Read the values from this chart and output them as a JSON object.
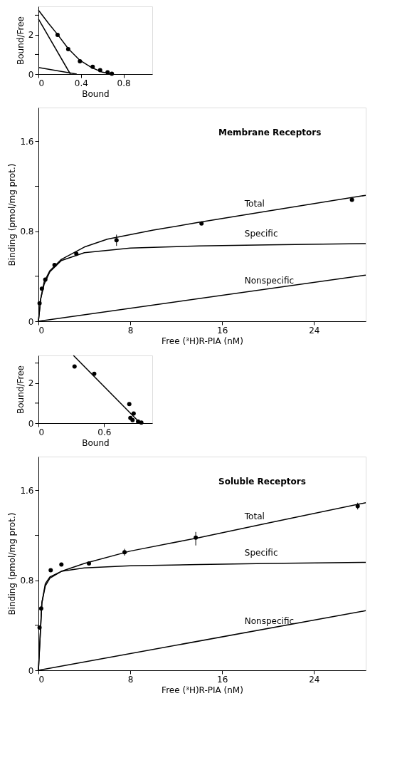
{
  "chart_data": [
    {
      "type": "line",
      "xlabel": "Bound",
      "ylabel": "Bound/Free",
      "xlim": [
        0,
        1.07
      ],
      "ylim": [
        0,
        3.45
      ],
      "xticks": [
        0,
        0.4,
        0.8
      ],
      "yticks": [
        0,
        {
          "value": 1,
          "label": null
        },
        2,
        {
          "value": 3,
          "label": null
        }
      ],
      "series": [
        {
          "type": "scatter",
          "marker": "circle",
          "color": "#000000",
          "x": [
            0.18,
            0.28,
            0.39,
            0.51,
            0.58,
            0.65,
            0.69
          ],
          "values": [
            2.0,
            1.27,
            0.65,
            0.37,
            0.2,
            0.09,
            0.02
          ]
        },
        {
          "type": "line",
          "color": "#000000",
          "x": [
            0,
            0.1,
            0.18,
            0.28,
            0.39,
            0.5,
            0.6,
            0.7
          ],
          "values": [
            3.26,
            2.55,
            2.02,
            1.3,
            0.7,
            0.33,
            0.1,
            0
          ]
        },
        {
          "type": "line",
          "color": "#000000",
          "x": [
            0,
            0.3
          ],
          "values": [
            2.81,
            0
          ]
        },
        {
          "type": "line",
          "color": "#000000",
          "x": [
            0,
            0.36
          ],
          "values": [
            0.34,
            0
          ]
        }
      ]
    },
    {
      "type": "line",
      "title": "Membrane Receptors",
      "xlabel": "Free (³H)R-PIA (nM)",
      "ylabel": "Binding  (pmol/mg prot.)",
      "xlim": [
        0,
        28.5
      ],
      "ylim": [
        0,
        1.9
      ],
      "xticks": [
        0,
        8,
        16,
        24
      ],
      "yticks": [
        0,
        {
          "value": 0.4,
          "label": null
        },
        0.8,
        {
          "value": 1.2,
          "label": null
        },
        1.6
      ],
      "series": [
        {
          "type": "scatter",
          "marker": "circle",
          "color": "#000000",
          "x": [
            0.1,
            0.3,
            0.6,
            1.4,
            3.3,
            6.8,
            14.2,
            27.3
          ],
          "values": [
            0.16,
            0.29,
            0.37,
            0.5,
            0.6,
            0.72,
            0.87,
            1.08
          ],
          "errors": [
            null,
            null,
            null,
            null,
            null,
            [
              0.67,
              0.77
            ],
            null,
            null
          ]
        },
        {
          "type": "line",
          "name": "Total",
          "color": "#000000",
          "x": [
            0,
            0.2,
            0.5,
            1,
            2,
            4,
            6,
            10,
            14,
            20,
            28.5
          ],
          "values": [
            0,
            0.2,
            0.35,
            0.45,
            0.55,
            0.66,
            0.73,
            0.81,
            0.88,
            0.98,
            1.12
          ]
        },
        {
          "type": "line",
          "name": "Specific",
          "color": "#000000",
          "x": [
            0,
            0.2,
            0.5,
            1,
            2,
            4,
            8,
            14,
            20,
            28.5
          ],
          "values": [
            0,
            0.2,
            0.33,
            0.44,
            0.54,
            0.61,
            0.65,
            0.67,
            0.68,
            0.69
          ]
        },
        {
          "type": "line",
          "name": "Nonspecific",
          "color": "#000000",
          "x": [
            0,
            28.5
          ],
          "values": [
            0,
            0.41
          ]
        }
      ]
    },
    {
      "type": "line",
      "xlabel": "Bound",
      "ylabel": "Bound/Free",
      "xlim": [
        0,
        1.04
      ],
      "ylim": [
        0,
        3.38
      ],
      "xticks": [
        0,
        0.6
      ],
      "yticks": [
        0,
        {
          "value": 1,
          "label": null
        },
        2,
        {
          "value": 3,
          "label": null
        }
      ],
      "series": [
        {
          "type": "scatter",
          "marker": "circle",
          "color": "#000000",
          "x": [
            0.33,
            0.51,
            0.83,
            0.87,
            0.84,
            0.86,
            0.91,
            0.94
          ],
          "values": [
            2.83,
            2.46,
            0.95,
            0.48,
            0.26,
            0.15,
            0.08,
            0.03
          ]
        },
        {
          "type": "line",
          "color": "#000000",
          "x": [
            0.32,
            0.93
          ],
          "values": [
            3.38,
            0
          ]
        }
      ]
    },
    {
      "type": "line",
      "title": "Soluble Receptors",
      "xlabel": "Free (³H)R-PIA (nM)",
      "ylabel": "Binding  (pmol/mg prot.)",
      "xlim": [
        0,
        28.5
      ],
      "ylim": [
        0,
        1.9
      ],
      "xticks": [
        0,
        8,
        16,
        24
      ],
      "yticks": [
        0,
        {
          "value": 0.4,
          "label": null
        },
        0.8,
        {
          "value": 1.2,
          "label": null
        },
        1.6
      ],
      "series": [
        {
          "type": "scatter",
          "marker": "circle",
          "color": "#000000",
          "x": [
            0.1,
            0.24,
            1.07,
            2.0,
            4.4,
            7.5,
            13.7,
            27.8
          ],
          "values": [
            0.38,
            0.55,
            0.89,
            0.94,
            0.95,
            1.05,
            1.18,
            1.46
          ],
          "errors": [
            null,
            null,
            null,
            null,
            null,
            [
              1.02,
              1.08
            ],
            [
              1.11,
              1.23
            ],
            [
              1.43,
              1.49
            ]
          ]
        },
        {
          "type": "line",
          "name": "Total",
          "color": "#000000",
          "x": [
            0,
            0.3,
            0.6,
            1,
            2,
            4,
            8,
            14,
            20,
            28.5
          ],
          "values": [
            0,
            0.6,
            0.77,
            0.83,
            0.88,
            0.95,
            1.06,
            1.18,
            1.31,
            1.49
          ]
        },
        {
          "type": "line",
          "name": "Specific",
          "color": "#000000",
          "x": [
            0,
            0.3,
            0.6,
            1,
            2,
            4,
            8,
            14,
            20,
            28.5
          ],
          "values": [
            0,
            0.6,
            0.75,
            0.82,
            0.88,
            0.91,
            0.93,
            0.94,
            0.95,
            0.96
          ]
        },
        {
          "type": "line",
          "name": "Nonspecific",
          "color": "#000000",
          "x": [
            0,
            28.5
          ],
          "values": [
            0,
            0.53
          ]
        }
      ]
    }
  ]
}
